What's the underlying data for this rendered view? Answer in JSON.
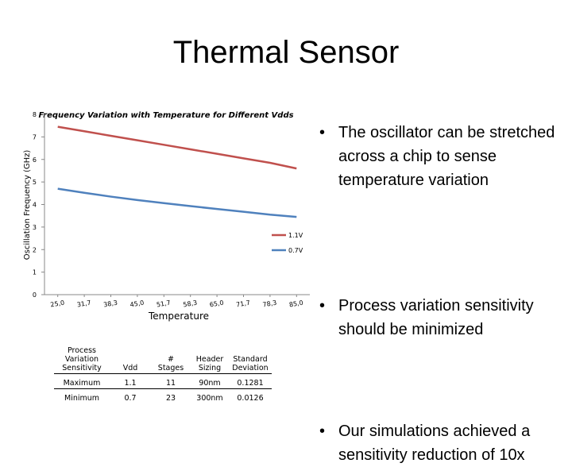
{
  "slide": {
    "title": "Thermal Sensor"
  },
  "bullets": [
    {
      "marker": "•",
      "text": "The oscillator can be stretched across a chip to sense temperature variation"
    },
    {
      "marker": "•",
      "text": "Process variation sensitivity should be minimized"
    },
    {
      "marker": "•",
      "text": "Our simulations achieved a sensitivity reduction of 10x"
    }
  ],
  "chart_data": {
    "type": "line",
    "title": "Frequency Variation with Temperature for Different Vdds",
    "xlabel": "Temperature",
    "ylabel": "Oscillation Frequency (GHz)",
    "x": [
      "25,0",
      "31,7",
      "38,3",
      "45,0",
      "51,7",
      "58,3",
      "65,0",
      "71,7",
      "78,3",
      "85,0"
    ],
    "ylim": [
      0,
      8
    ],
    "yticks": [
      0,
      1,
      2,
      3,
      4,
      5,
      6,
      7,
      8
    ],
    "series": [
      {
        "name": "1.1V",
        "color": "#c0504d",
        "values": [
          7.45,
          7.25,
          7.05,
          6.85,
          6.65,
          6.45,
          6.25,
          6.05,
          5.85,
          5.6
        ]
      },
      {
        "name": "0.7V",
        "color": "#4f81bd",
        "values": [
          4.7,
          4.52,
          4.35,
          4.2,
          4.06,
          3.93,
          3.8,
          3.68,
          3.55,
          3.45
        ]
      }
    ],
    "legend": "right",
    "grid": false
  },
  "table": {
    "header": [
      "Process Variation Sensitivity",
      "Vdd",
      "# Stages",
      "Header Sizing",
      "Standard Deviation"
    ],
    "rows": [
      [
        "Maximum",
        "1.1",
        "11",
        "90nm",
        "0.1281"
      ],
      [
        "Minimum",
        "0.7",
        "23",
        "300nm",
        "0.0126"
      ]
    ]
  }
}
